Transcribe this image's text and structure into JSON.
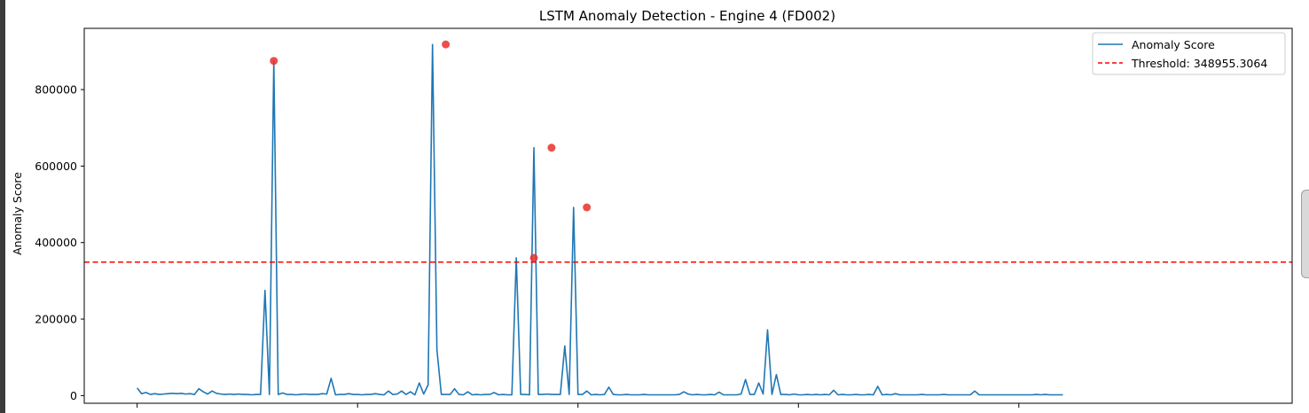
{
  "chart_data": {
    "type": "line",
    "title": "LSTM Anomaly Detection - Engine 4 (FD002)",
    "xlabel": "",
    "ylabel": "Anomaly Score",
    "xlim": [
      -12,
      262
    ],
    "ylim": [
      -20000,
      960000
    ],
    "yticks": [
      0,
      200000,
      400000,
      600000,
      800000
    ],
    "ytick_labels": [
      "0",
      "200000",
      "400000",
      "600000",
      "800000"
    ],
    "xticks": [
      0,
      50,
      100,
      150,
      200
    ],
    "grid": false,
    "legend_position": "top-right",
    "legend": [
      "Anomaly Score",
      "Threshold: 348955.3064"
    ],
    "colors": {
      "score": "#1f77b4",
      "threshold": "#ff0000",
      "anomaly": "#e8302a"
    },
    "threshold": 348955.3064,
    "series": [
      {
        "name": "Anomaly Score",
        "values": [
          20000,
          5000,
          8000,
          3000,
          5000,
          3000,
          4000,
          5000,
          6000,
          5000,
          6000,
          4000,
          5000,
          3000,
          18000,
          10000,
          4000,
          12000,
          6000,
          4000,
          3000,
          4000,
          3000,
          4000,
          3000,
          3000,
          2000,
          3000,
          3000,
          275000,
          3000,
          875000,
          3000,
          7000,
          3000,
          3000,
          2000,
          3000,
          4000,
          3000,
          3000,
          3000,
          5000,
          4000,
          45000,
          2000,
          3000,
          3000,
          5000,
          3000,
          3000,
          2000,
          3000,
          3000,
          5000,
          3000,
          2000,
          12000,
          3000,
          4000,
          12000,
          3000,
          10000,
          2000,
          33000,
          4000,
          28000,
          918000,
          120000,
          3000,
          3000,
          3000,
          18000,
          3000,
          2000,
          10000,
          2000,
          3000,
          2000,
          3000,
          3000,
          8000,
          2000,
          3000,
          2000,
          2000,
          360000,
          3000,
          3000,
          2000,
          648000,
          3000,
          3000,
          4000,
          3000,
          3000,
          3000,
          130000,
          3000,
          492000,
          3000,
          3000,
          12000,
          2000,
          3000,
          2000,
          3000,
          22000,
          3000,
          2000,
          2000,
          3000,
          2000,
          2000,
          2000,
          3000,
          2000,
          2000,
          2000,
          2000,
          2000,
          2000,
          2000,
          3000,
          10000,
          4000,
          2000,
          3000,
          2000,
          2000,
          3000,
          2000,
          9000,
          2000,
          2000,
          2000,
          2000,
          4000,
          42000,
          3000,
          3000,
          33000,
          4000,
          172000,
          3000,
          55000,
          3000,
          3000,
          2000,
          4000,
          2000,
          2000,
          3000,
          2000,
          3000,
          2000,
          3000,
          2000,
          14000,
          2000,
          3000,
          2000,
          2000,
          3000,
          2000,
          2000,
          3000,
          2000,
          24000,
          2000,
          3000,
          2000,
          5000,
          2000,
          2000,
          2000,
          2000,
          2000,
          3000,
          2000,
          2000,
          2000,
          2000,
          3000,
          2000,
          2000,
          2000,
          2000,
          2000,
          2000,
          12000,
          2000,
          2000,
          2000,
          2000,
          2000,
          2000,
          2000,
          2000,
          2000,
          2000,
          2000,
          2000,
          2000,
          3000,
          2000,
          3000,
          2000,
          2000,
          2000,
          2000
        ]
      }
    ],
    "anomalies": [
      {
        "x": 31,
        "y": 875000
      },
      {
        "x": 70,
        "y": 918000
      },
      {
        "x": 90,
        "y": 360000
      },
      {
        "x": 94,
        "y": 648000
      },
      {
        "x": 102,
        "y": 492000
      }
    ]
  }
}
